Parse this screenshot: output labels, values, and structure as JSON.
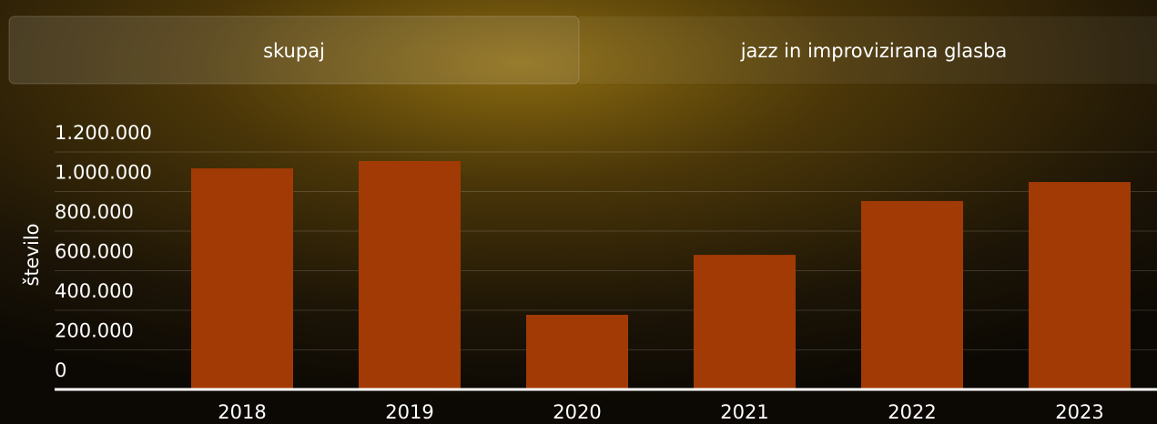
{
  "tabs": [
    "skupaj",
    "jazz in improvizirana glasba"
  ],
  "chart_data": {
    "type": "bar",
    "y_label": "število",
    "categories": [
      "2018",
      "2019",
      "2020",
      "2021",
      "2022",
      "2023"
    ],
    "values": [
      1117000,
      1154000,
      377000,
      680000,
      952000,
      1048000
    ],
    "color": "#a23a05",
    "ylim": [
      0,
      1200000
    ],
    "yticks": [
      0,
      {
        "value": 200000,
        "label": "200.000"
      },
      {
        "value": 400000,
        "label": "400.000"
      },
      {
        "value": 600000,
        "label": "600.000"
      },
      {
        "value": 800000,
        "label": "800.000"
      },
      {
        "value": 1000000,
        "label": "1.000.000"
      },
      {
        "value": 1200000,
        "label": "1.200.000"
      }
    ],
    "grid": true
  }
}
